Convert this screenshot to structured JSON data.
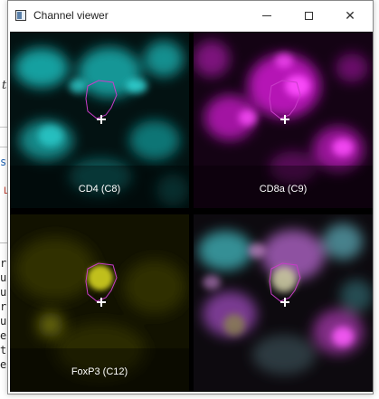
{
  "window": {
    "title": "Channel viewer",
    "buttons": {
      "minimize": "minimize",
      "maximize": "maximize",
      "close": "✕"
    }
  },
  "background": {
    "italic_fragment": "th",
    "blue_fragment": "si",
    "red_fragment": "L",
    "code_lines": [
      "ro",
      "ut",
      "ut",
      "ro",
      "ut",
      "e",
      "t",
      "e"
    ]
  },
  "panels": [
    {
      "label": "CD4 (C8)",
      "channel_color": "#19c2c2"
    },
    {
      "label": "CD8a (C9)",
      "channel_color": "#e01fe0"
    },
    {
      "label": "FoxP3 (C12)",
      "channel_color": "#b7b81a"
    },
    {
      "label": "",
      "channel_color": "composite"
    }
  ],
  "marker": {
    "symbol": "+",
    "outline_color": "#c83cc8"
  }
}
